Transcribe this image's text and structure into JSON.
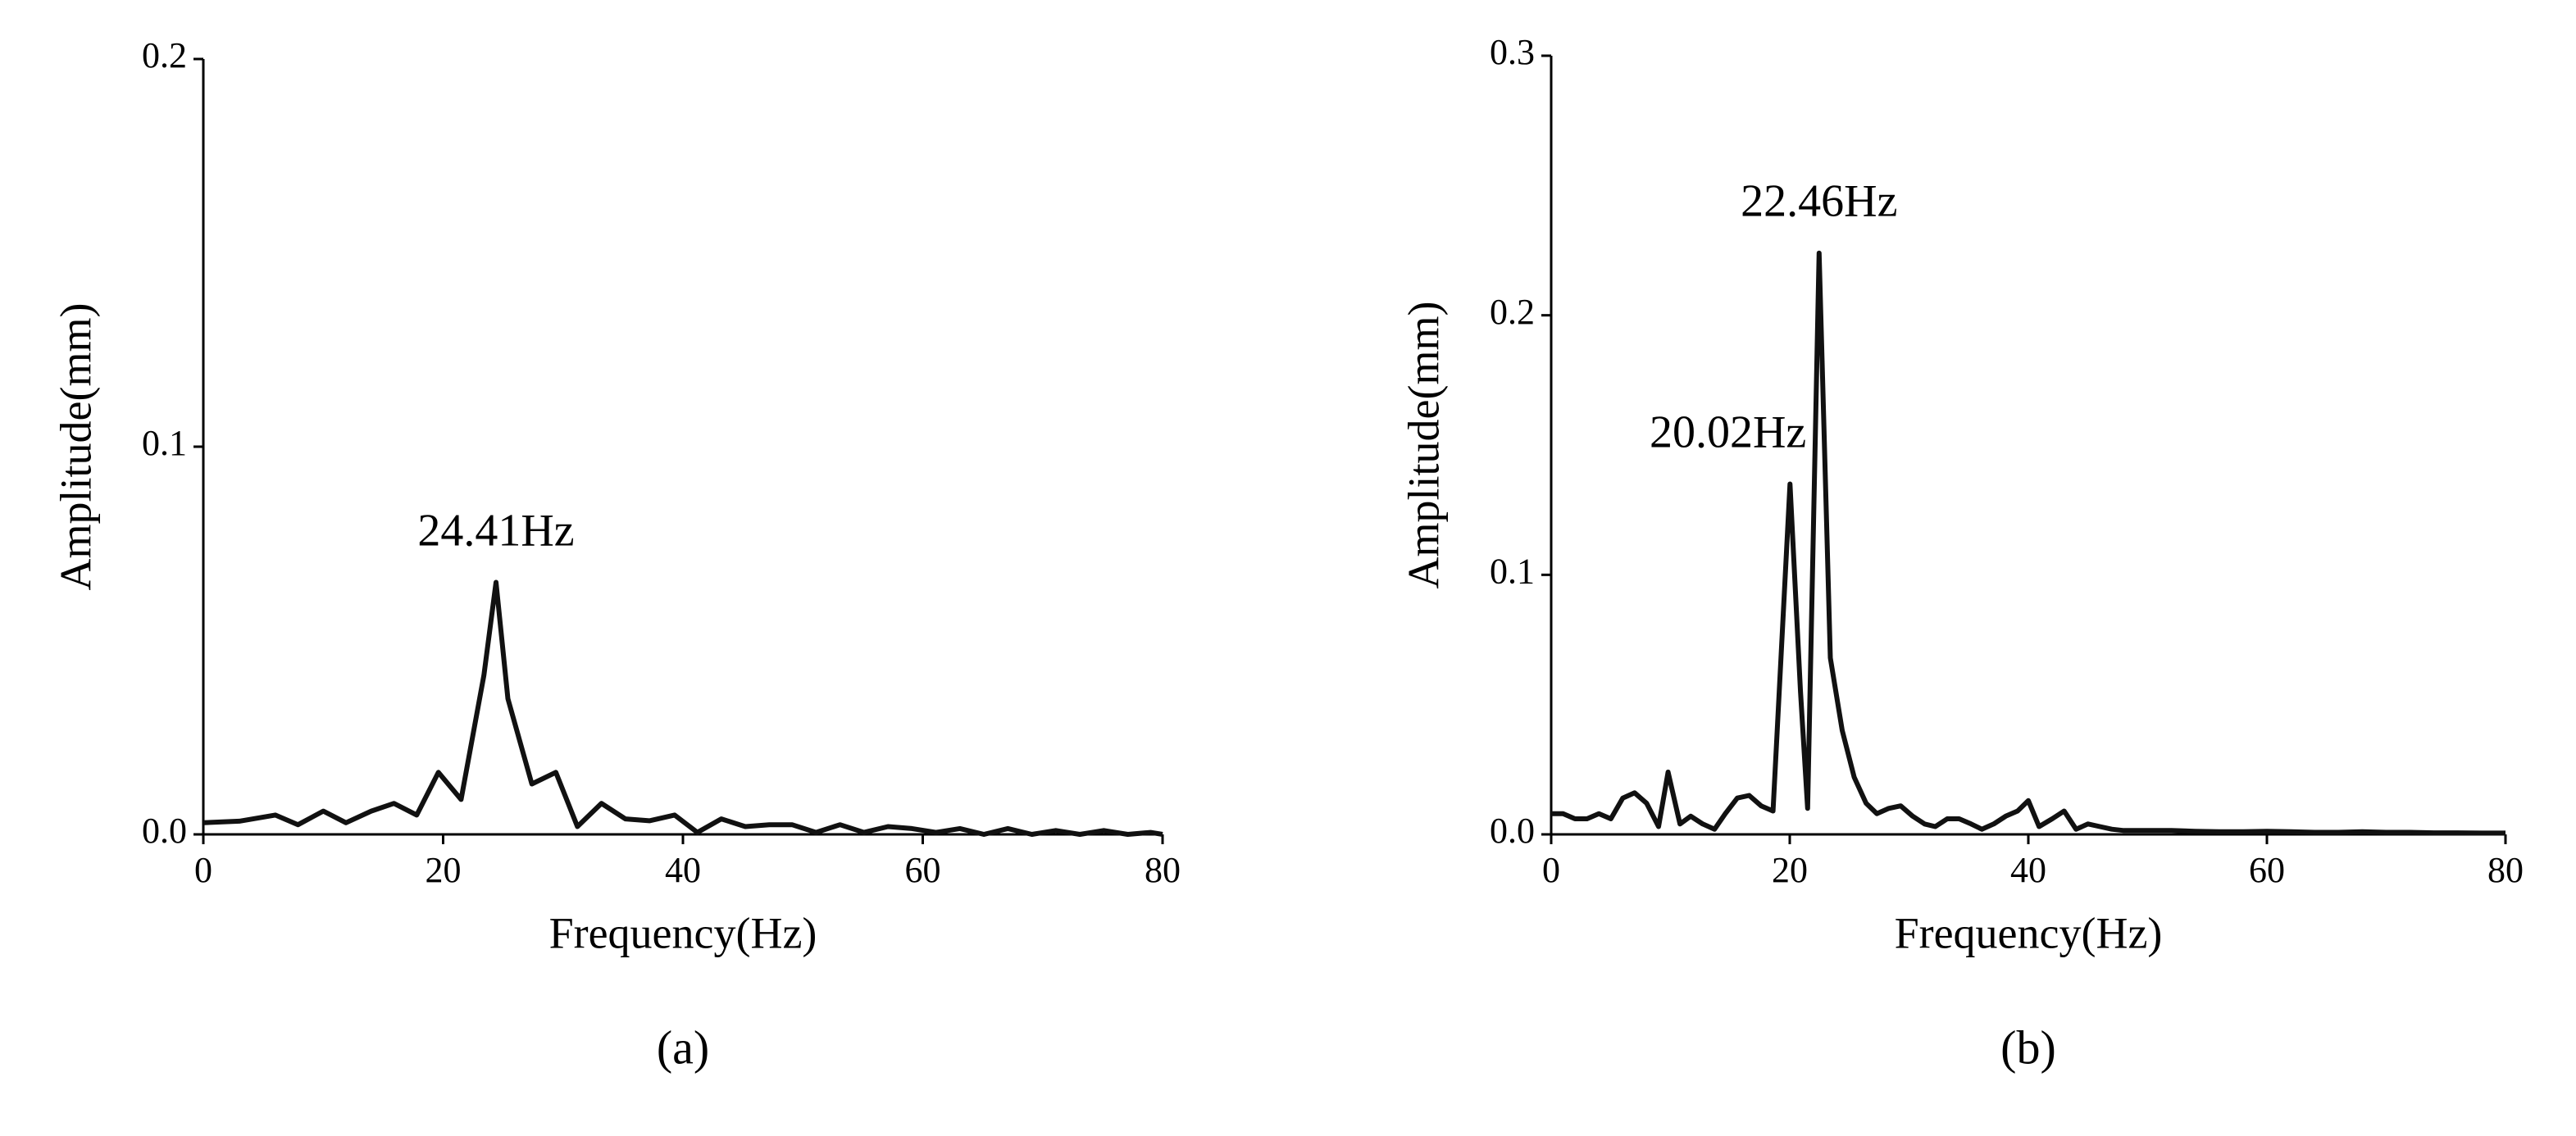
{
  "chart_data": [
    {
      "type": "line",
      "label": "(a)",
      "x_label": "Frequency(Hz)",
      "y_label": "Amplitude(mm)",
      "xlim": [
        0,
        80
      ],
      "xticks": [
        0,
        20,
        40,
        60,
        80
      ],
      "ylim": [
        0,
        0.2
      ],
      "yticks": [
        {
          "value": 0,
          "label": "0.0"
        },
        0.1,
        0.2
      ],
      "annotations": [
        {
          "text": "24.41Hz",
          "x": 24.41,
          "y": 0.065
        }
      ],
      "series": [
        {
          "color": "#111111",
          "x": [
            0,
            3,
            6,
            7.9,
            10,
            11.9,
            14,
            15.9,
            17.8,
            19.6,
            21.5,
            23.4,
            24.41,
            25.4,
            27.4,
            29.4,
            31.2,
            33.2,
            35.2,
            37.2,
            39.3,
            41.2,
            43.2,
            45.2,
            47.2,
            49.1,
            51.1,
            53.1,
            55.1,
            57.1,
            59.1,
            61.1,
            63.1,
            65.1,
            67.1,
            69.1,
            71.1,
            73.1,
            75.1,
            77.1,
            79,
            80
          ],
          "values": [
            0.003,
            0.0034,
            0.005,
            0.0025,
            0.006,
            0.003,
            0.006,
            0.008,
            0.005,
            0.016,
            0.009,
            0.041,
            0.065,
            0.035,
            0.013,
            0.016,
            0.002,
            0.008,
            0.004,
            0.0035,
            0.005,
            0.0005,
            0.004,
            0.002,
            0.0025,
            0.0025,
            0.0005,
            0.0025,
            0.0005,
            0.002,
            0.0015,
            0.0005,
            0.0015,
            0,
            0.0015,
            0,
            0.001,
            0,
            0.001,
            0,
            0.0005,
            0
          ]
        }
      ]
    },
    {
      "type": "line",
      "label": "(b)",
      "x_label": "Frequency(Hz)",
      "y_label": "Amplitude(mm)",
      "xlim": [
        0,
        80
      ],
      "xticks": [
        0,
        20,
        40,
        60,
        80
      ],
      "ylim": [
        0,
        0.3
      ],
      "yticks": [
        {
          "value": 0,
          "label": "0.0"
        },
        0.1,
        0.2,
        0.3
      ],
      "annotations": [
        {
          "text": "22.46Hz",
          "x": 22.46,
          "y": 0.224
        },
        {
          "text": "20.02Hz",
          "x": 20.02,
          "y": 0.135
        }
      ],
      "series": [
        {
          "color": "#111111",
          "x": [
            0,
            1,
            2,
            3,
            4,
            5,
            6,
            7,
            8,
            9,
            9.8,
            10.8,
            11.7,
            12.7,
            13.7,
            14.6,
            15.6,
            16.6,
            17.6,
            18.6,
            20.02,
            20.9,
            21.5,
            22.46,
            23.4,
            24.4,
            25.4,
            26.4,
            27.3,
            28.3,
            29.3,
            30.3,
            31.3,
            32.2,
            33.2,
            34.2,
            35.2,
            36.1,
            37.1,
            38.1,
            39.1,
            40,
            40.9,
            42,
            43,
            44,
            45,
            46,
            47,
            48,
            50,
            52,
            54,
            56,
            58,
            60,
            62,
            64,
            66,
            68,
            70,
            72,
            74,
            76,
            78,
            80
          ],
          "values": [
            0.008,
            0.008,
            0.006,
            0.006,
            0.008,
            0.006,
            0.014,
            0.016,
            0.012,
            0.003,
            0.024,
            0.004,
            0.007,
            0.004,
            0.002,
            0.008,
            0.014,
            0.015,
            0.011,
            0.009,
            0.135,
            0.055,
            0.01,
            0.224,
            0.068,
            0.04,
            0.022,
            0.012,
            0.008,
            0.01,
            0.011,
            0.007,
            0.004,
            0.003,
            0.006,
            0.006,
            0.004,
            0.002,
            0.004,
            0.007,
            0.009,
            0.013,
            0.003,
            0.006,
            0.009,
            0.002,
            0.004,
            0.003,
            0.002,
            0.0015,
            0.0015,
            0.0015,
            0.0012,
            0.001,
            0.001,
            0.0012,
            0.001,
            0.0008,
            0.0008,
            0.001,
            0.0008,
            0.0008,
            0.0006,
            0.0006,
            0.0005,
            0.0005
          ]
        }
      ]
    }
  ]
}
